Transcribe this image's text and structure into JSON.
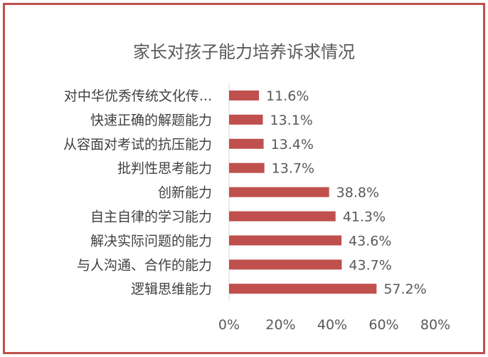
{
  "chart_data": {
    "type": "bar",
    "orientation": "horizontal",
    "title": "家长对孩子能力培养诉求情况",
    "categories": [
      "对中华优秀传统文化传...",
      "快速正确的解题能力",
      "从容面对考试的抗压能力",
      "批判性思考能力",
      "创新能力",
      "自主自律的学习能力",
      "解决实际问题的能力",
      "与人沟通、合作的能力",
      "逻辑思维能力"
    ],
    "values": [
      11.6,
      13.1,
      13.4,
      13.7,
      38.8,
      41.3,
      43.6,
      43.7,
      57.2
    ],
    "data_labels": [
      "11.6%",
      "13.1%",
      "13.4%",
      "13.7%",
      "38.8%",
      "41.3%",
      "43.6%",
      "43.7%",
      "57.2%"
    ],
    "x_ticks": [
      "0%",
      "20%",
      "40%",
      "60%",
      "80%"
    ],
    "xlim": [
      0,
      80
    ],
    "bar_color": "#c0504d",
    "border_color": "#c0504d",
    "grid": false,
    "legend": "none"
  }
}
